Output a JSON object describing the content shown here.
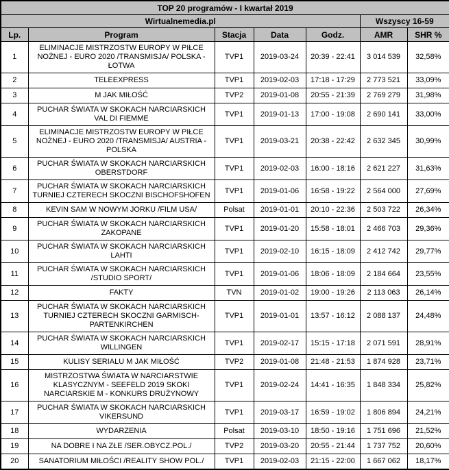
{
  "colors": {
    "header_bg": "#c0c0c0",
    "border": "#000000",
    "row_bg": "#ffffff",
    "text": "#000000"
  },
  "chart_data": {
    "type": "table",
    "title": "TOP 20 programów - I kwartał 2019",
    "source_label": "Wirtualnemedia.pl",
    "group_header": "Wszyscy 16-59",
    "columns": [
      "Lp.",
      "Program",
      "Stacja",
      "Data",
      "Godz.",
      "AMR",
      "SHR %"
    ],
    "rows": [
      [
        "1",
        "ELIMINACJE MISTRZOSTW EUROPY W PIŁCE NOŻNEJ - EURO 2020 /TRANSMISJA/ POLSKA - ŁOTWA",
        "TVP1",
        "2019-03-24",
        "20:39 - 22:41",
        "3 014 539",
        "32,58%"
      ],
      [
        "2",
        "TELEEXPRESS",
        "TVP1",
        "2019-02-03",
        "17:18 - 17:29",
        "2 773 521",
        "33,09%"
      ],
      [
        "3",
        "M JAK MIŁOŚĆ",
        "TVP2",
        "2019-01-08",
        "20:55 - 21:39",
        "2 769 279",
        "31,98%"
      ],
      [
        "4",
        "PUCHAR ŚWIATA W SKOKACH NARCIARSKICH VAL DI FIEMME",
        "TVP1",
        "2019-01-13",
        "17:00 - 19:08",
        "2 690 141",
        "33,00%"
      ],
      [
        "5",
        "ELIMINACJE MISTRZOSTW EUROPY W PIŁCE NOŻNEJ - EURO 2020 /TRANSMISJA/ AUSTRIA - POLSKA",
        "TVP1",
        "2019-03-21",
        "20:38 - 22:42",
        "2 632 345",
        "30,99%"
      ],
      [
        "6",
        "PUCHAR ŚWIATA W SKOKACH NARCIARSKICH OBERSTDORF",
        "TVP1",
        "2019-02-03",
        "16:00 - 18:16",
        "2 621 227",
        "31,63%"
      ],
      [
        "7",
        "PUCHAR ŚWIATA W SKOKACH NARCIARSKICH TURNIEJ CZTERECH SKOCZNI BISCHOFSHOFEN",
        "TVP1",
        "2019-01-06",
        "16:58 - 19:22",
        "2 564 000",
        "27,69%"
      ],
      [
        "8",
        "KEVIN SAM W NOWYM JORKU /FILM USA/",
        "Polsat",
        "2019-01-01",
        "20:10 - 22:36",
        "2 503 722",
        "26,34%"
      ],
      [
        "9",
        "PUCHAR ŚWIATA W SKOKACH NARCIARSKICH ZAKOPANE",
        "TVP1",
        "2019-01-20",
        "15:58 - 18:01",
        "2 466 703",
        "29,36%"
      ],
      [
        "10",
        "PUCHAR ŚWIATA W SKOKACH NARCIARSKICH LAHTI",
        "TVP1",
        "2019-02-10",
        "16:15 - 18:09",
        "2 412 742",
        "29,77%"
      ],
      [
        "11",
        "PUCHAR ŚWIATA W SKOKACH NARCIARSKICH /STUDIO SPORT/",
        "TVP1",
        "2019-01-06",
        "18:06 - 18:09",
        "2 184 664",
        "23,55%"
      ],
      [
        "12",
        "FAKTY",
        "TVN",
        "2019-01-02",
        "19:00 - 19:26",
        "2 113 063",
        "26,14%"
      ],
      [
        "13",
        "PUCHAR ŚWIATA W SKOKACH NARCIARSKICH TURNIEJ CZTERECH SKOCZNI GARMISCH-PARTENKIRCHEN",
        "TVP1",
        "2019-01-01",
        "13:57 - 16:12",
        "2 088 137",
        "24,48%"
      ],
      [
        "14",
        "PUCHAR ŚWIATA W SKOKACH NARCIARSKICH WILLINGEN",
        "TVP1",
        "2019-02-17",
        "15:15 - 17:18",
        "2 071 591",
        "28,91%"
      ],
      [
        "15",
        "KULISY SERIALU M JAK MIŁOŚĆ",
        "TVP2",
        "2019-01-08",
        "21:48 - 21:53",
        "1 874 928",
        "23,71%"
      ],
      [
        "16",
        "MISTRZOSTWA ŚWIATA W NARCIARSTWIE KLASYCZNYM - SEEFELD 2019 SKOKI NARCIARSKIE M - KONKURS DRUŻYNOWY",
        "TVP1",
        "2019-02-24",
        "14:41 - 16:35",
        "1 848 334",
        "25,82%"
      ],
      [
        "17",
        "PUCHAR ŚWIATA W SKOKACH NARCIARSKICH VIKERSUND",
        "TVP1",
        "2019-03-17",
        "16:59 - 19:02",
        "1 806 894",
        "24,21%"
      ],
      [
        "18",
        "WYDARZENIA",
        "Polsat",
        "2019-03-10",
        "18:50 - 19:16",
        "1 751 696",
        "21,52%"
      ],
      [
        "19",
        "NA DOBRE I NA ZŁE /SER.OBYCZ.POL./",
        "TVP2",
        "2019-03-20",
        "20:55 - 21:44",
        "1 737 752",
        "20,60%"
      ],
      [
        "20",
        "SANATORIUM MIŁOŚCI /REALITY SHOW POL./",
        "TVP1",
        "2019-02-03",
        "21:15 - 22:00",
        "1 667 062",
        "18,17%"
      ]
    ]
  }
}
